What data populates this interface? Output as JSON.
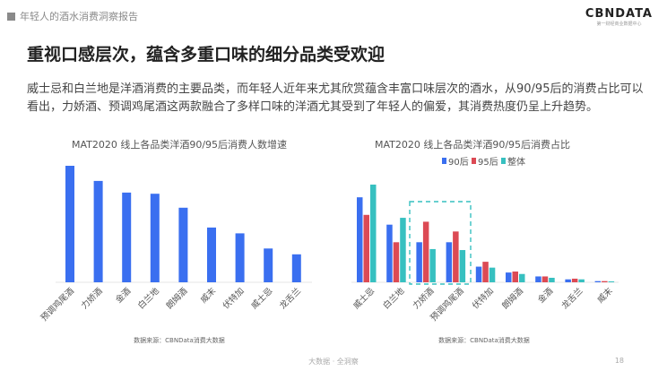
{
  "header": {
    "section": "年轻人的酒水消费洞察报告",
    "logo": "CBNDATA",
    "logo_sub": "第一财经商业数据中心"
  },
  "title": "重视口感层次，蕴含多重口味的细分品类受欢迎",
  "description": "威士忌和白兰地是洋酒消费的主要品类，而年轻人近年来尤其欣赏蕴含丰富口味层次的酒水，从90/95后的消费占比可以看出，力娇酒、预调鸡尾酒这两款融合了多样口味的洋酒尤其受到了年轻人的偏爱，其消费热度仍呈上升趋势。",
  "footer": {
    "slogan": "大数据 · 全洞察",
    "page": "18"
  },
  "chart_data": [
    {
      "type": "bar",
      "title": "MAT2020 线上各品类洋酒90/95后消费人数增速",
      "source": "数据来源：CBNData消费大数据",
      "categories": [
        "预调鸡尾酒",
        "力娇酒",
        "金酒",
        "白兰地",
        "朗姆酒",
        "威末",
        "伏特加",
        "威士忌",
        "龙舌兰"
      ],
      "values": [
        100,
        87,
        77,
        76,
        64,
        47,
        42,
        29,
        24
      ],
      "color": "#3a6ff0",
      "grid": false
    },
    {
      "type": "bar",
      "title": "MAT2020 线上各品类洋酒90/95后消费占比",
      "source": "数据来源：CBNData消费大数据",
      "legend": "top",
      "categories": [
        "威士忌",
        "白兰地",
        "力娇酒",
        "预调鸡尾酒",
        "伏特加",
        "朗姆酒",
        "金酒",
        "龙舌兰",
        "威末"
      ],
      "series": [
        {
          "name": "90后",
          "color": "#3a6ff0",
          "values": [
            87,
            59,
            41,
            41,
            16,
            10,
            6,
            3,
            1.2
          ]
        },
        {
          "name": "95后",
          "color": "#dc4a54",
          "values": [
            69,
            41,
            62,
            52,
            21,
            11,
            6,
            3.7,
            1.2
          ]
        },
        {
          "name": "整体",
          "color": "#37c0c0",
          "values": [
            100,
            66,
            34,
            33,
            15,
            8.5,
            4.6,
            3,
            0.9
          ]
        }
      ],
      "highlight": [
        "力娇酒",
        "预调鸡尾酒"
      ],
      "grid": false
    }
  ]
}
